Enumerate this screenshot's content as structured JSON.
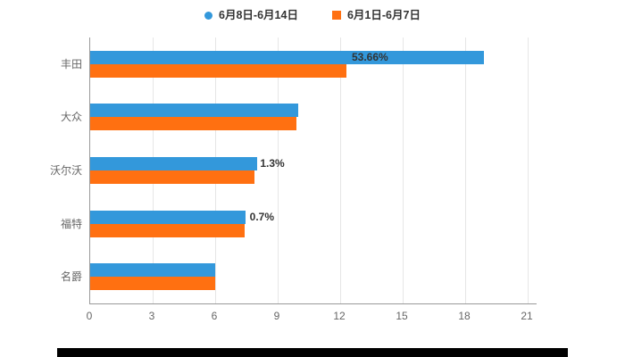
{
  "colors": {
    "series1": "#3398DB",
    "series2": "#FF7011",
    "axis": "#999999",
    "grid": "#E6E6E6",
    "label": "#666666",
    "annotation": "#333333"
  },
  "legend": {
    "items": [
      {
        "label": "6月8日-6月14日",
        "marker": "circle",
        "color": "#3398DB"
      },
      {
        "label": "6月1日-6月7日",
        "marker": "square",
        "color": "#FF7011"
      }
    ]
  },
  "chart_data": {
    "type": "bar",
    "orientation": "horizontal",
    "title": "",
    "categories": [
      "丰田",
      "大众",
      "沃尔沃",
      "福特",
      "名爵"
    ],
    "series": [
      {
        "name": "6月8日-6月14日",
        "color": "#3398DB",
        "values": [
          18.9,
          10,
          8,
          7.45,
          6
        ]
      },
      {
        "name": "6月1日-6月7日",
        "color": "#FF7011",
        "values": [
          12.3,
          9.9,
          7.9,
          7.4,
          6
        ]
      }
    ],
    "xlim": [
      0,
      21
    ],
    "xticks": [
      0,
      3,
      6,
      9,
      12,
      15,
      18,
      21
    ],
    "grid": true,
    "legend_position": "top",
    "annotations": [
      {
        "category_index": 0,
        "text": "53.66%"
      },
      {
        "category_index": 2,
        "text": "1.3%"
      },
      {
        "category_index": 3,
        "text": "0.7%"
      }
    ]
  }
}
